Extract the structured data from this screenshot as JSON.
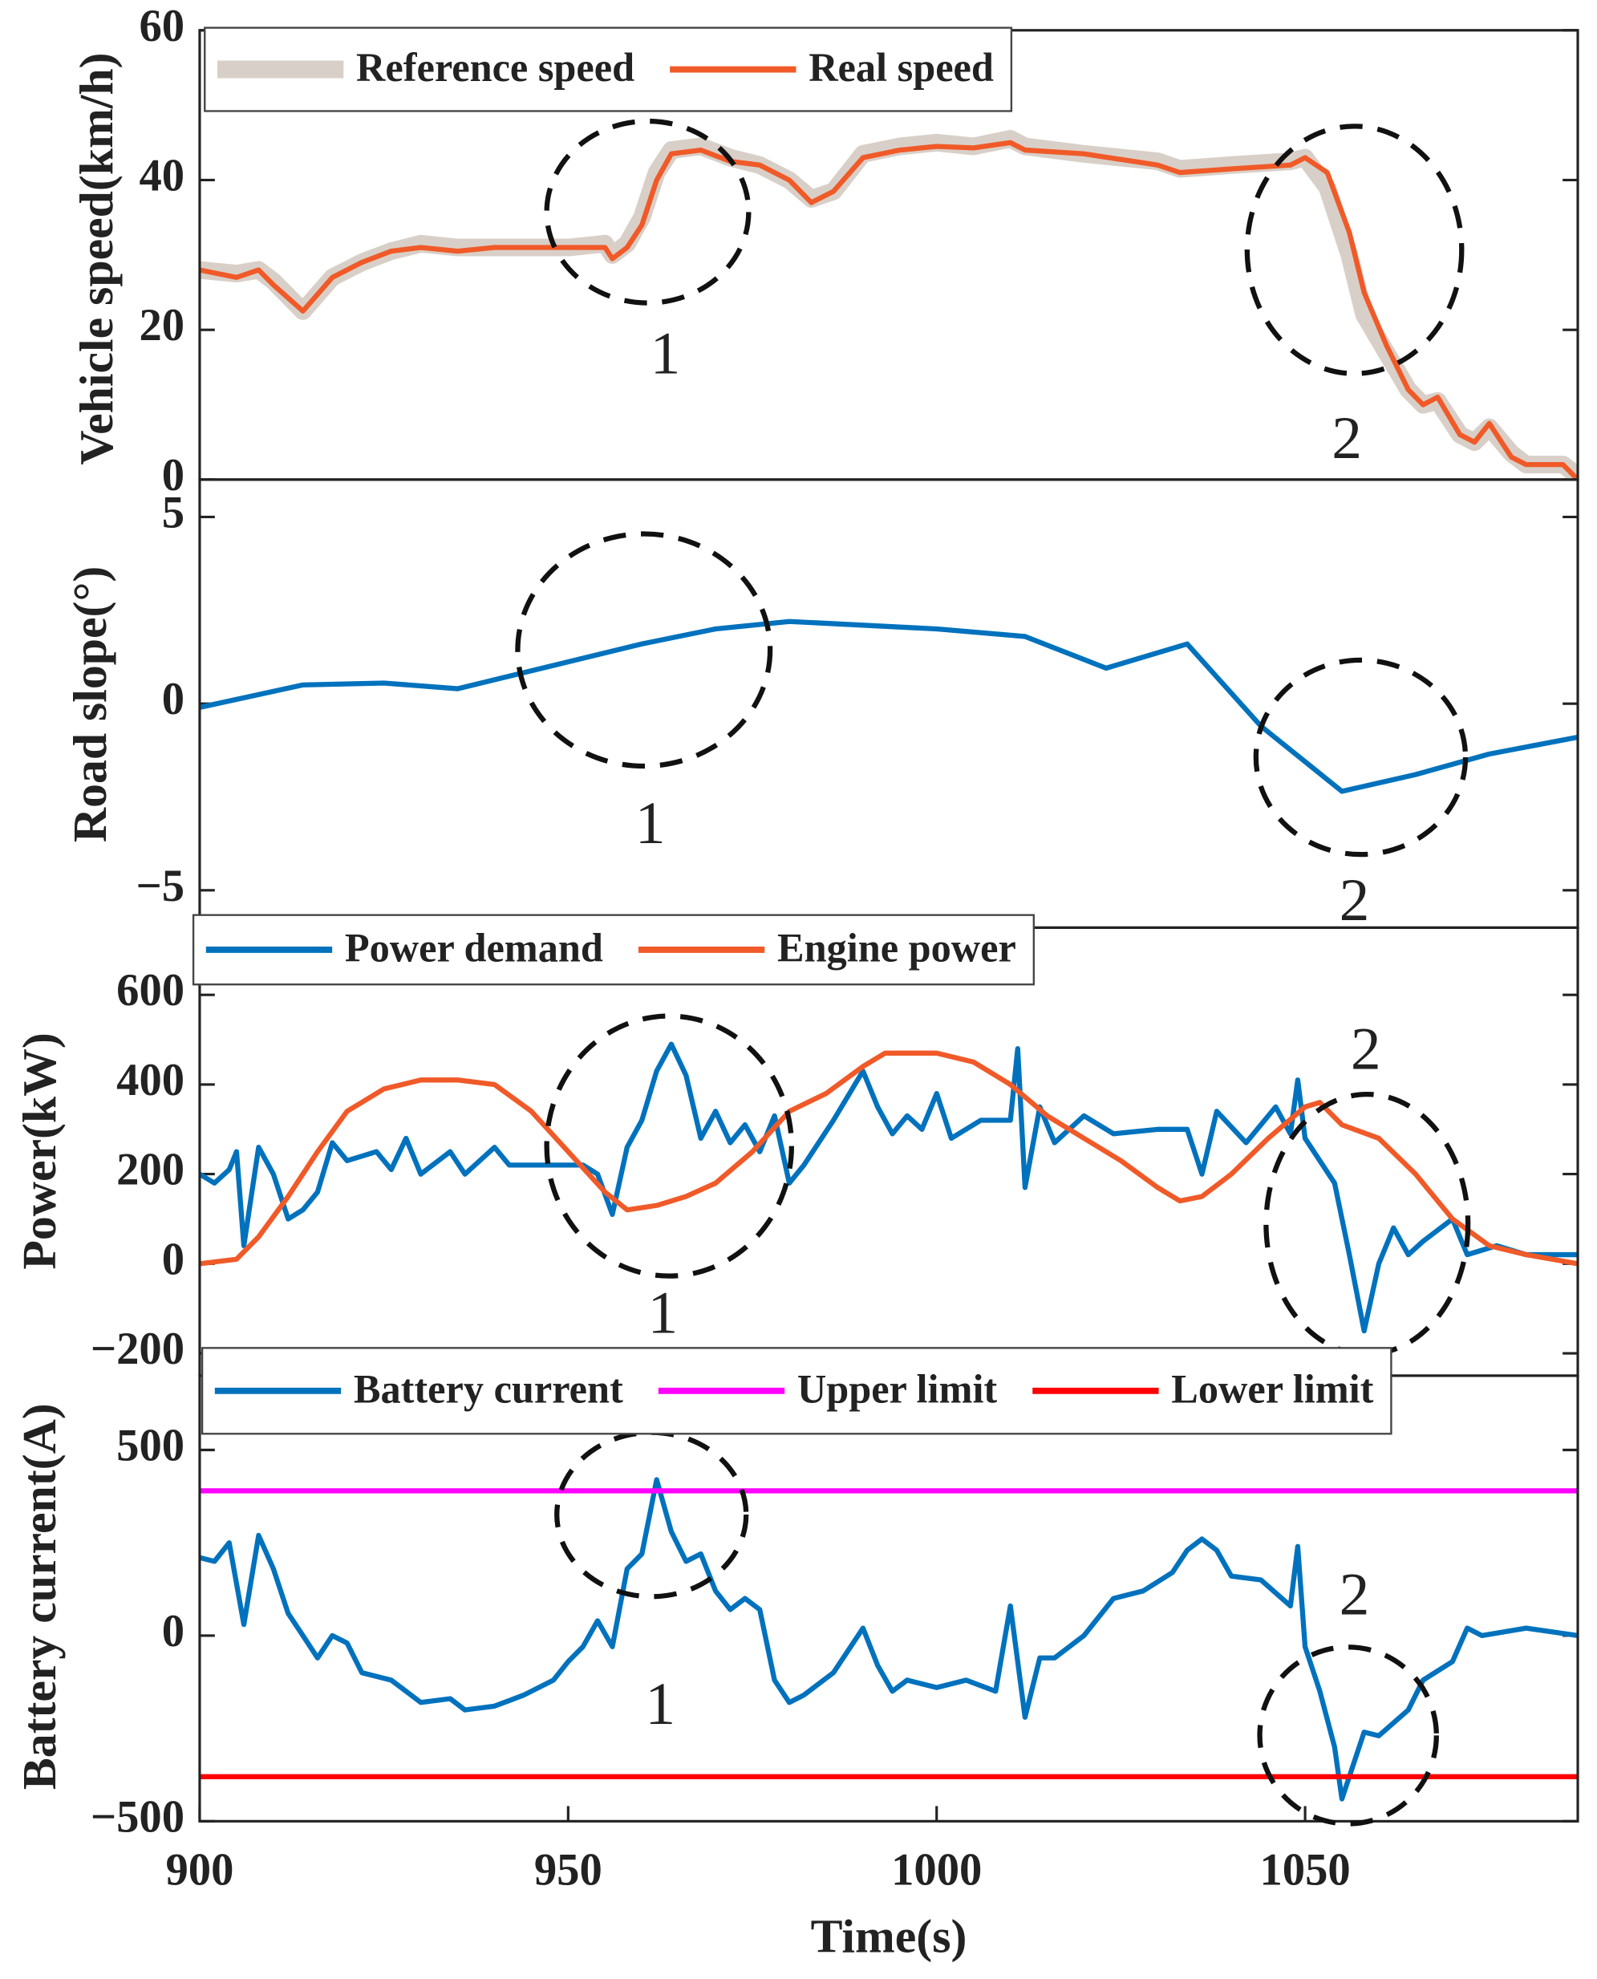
{
  "chart_data": [
    {
      "type": "line",
      "ylabel": "Vehicle speed(km/h)",
      "xlim": [
        900,
        1087
      ],
      "ylim": [
        0,
        60
      ],
      "yticks": [
        0,
        20,
        40,
        60
      ],
      "legend": "upper left",
      "x": [
        900,
        905,
        908,
        910,
        914,
        918,
        922,
        926,
        930,
        935,
        940,
        950,
        955,
        956,
        958,
        960,
        962,
        964,
        968,
        972,
        976,
        980,
        983,
        986,
        990,
        995,
        1000,
        1005,
        1010,
        1012,
        1020,
        1030,
        1033,
        1040,
        1048,
        1050,
        1053,
        1056,
        1058,
        1061,
        1064,
        1066,
        1068,
        1071,
        1073,
        1075,
        1078,
        1080,
        1085,
        1087
      ],
      "series": [
        {
          "name": "Reference speed",
          "color": "#d8d0c8",
          "values": [
            28,
            27.5,
            28,
            26.5,
            22.5,
            27,
            29,
            30.5,
            31.5,
            31,
            31,
            31,
            31.5,
            30,
            31.5,
            35,
            41,
            44,
            44.5,
            43,
            42,
            40,
            37.5,
            38.5,
            43.5,
            44.5,
            45,
            44.5,
            45.5,
            44.5,
            43.5,
            42.5,
            41.5,
            42,
            42.5,
            43,
            39,
            30,
            22,
            17,
            12,
            10,
            10.5,
            6,
            5,
            7,
            3.5,
            2,
            2,
            0.5
          ]
        },
        {
          "name": "Real speed",
          "color": "#f05a28",
          "values": [
            28,
            27,
            28,
            26,
            22.5,
            27,
            29,
            30.5,
            31,
            30.5,
            31,
            31,
            31,
            29.5,
            31,
            34,
            40,
            43.5,
            44,
            42.5,
            42,
            40,
            37,
            38.5,
            43,
            44,
            44.5,
            44.3,
            45,
            44,
            43.5,
            42,
            41,
            41.5,
            42,
            43,
            41,
            33,
            25,
            18,
            12,
            10,
            11,
            6,
            5,
            7.5,
            3,
            2,
            2,
            0
          ]
        }
      ],
      "annotations": [
        "1",
        "2"
      ]
    },
    {
      "type": "line",
      "ylabel": "Road slope(°)",
      "xlim": [
        900,
        1087
      ],
      "ylim": [
        -6,
        6
      ],
      "yticks": [
        {
          "value": -5,
          "label": "−5"
        },
        0,
        5
      ],
      "x": [
        900,
        914,
        925,
        935,
        960,
        970,
        980,
        1000,
        1012,
        1023,
        1034,
        1044,
        1055,
        1065,
        1075,
        1087
      ],
      "series": [
        {
          "name": "Road slope",
          "color": "#0072bd",
          "values": [
            -0.1,
            0.5,
            0.55,
            0.4,
            1.6,
            2.0,
            2.2,
            2.0,
            1.8,
            0.95,
            1.6,
            -0.6,
            -2.35,
            -1.9,
            -1.35,
            -0.9
          ]
        }
      ],
      "annotations": [
        "1",
        "2"
      ]
    },
    {
      "type": "line",
      "ylabel": "Power(kW)",
      "xlim": [
        900,
        1087
      ],
      "ylim": [
        -250,
        750
      ],
      "yticks": [
        {
          "value": -200,
          "label": "−200"
        },
        0,
        200,
        400,
        600
      ],
      "legend": "upper left",
      "series": [
        {
          "name": "Power demand",
          "color": "#0072bd",
          "x": [
            900,
            902,
            904,
            905,
            906,
            908,
            910,
            912,
            914,
            916,
            918,
            920,
            924,
            926,
            928,
            930,
            934,
            936,
            940,
            942,
            950,
            952,
            954,
            956,
            958,
            960,
            962,
            964,
            966,
            968,
            970,
            972,
            974,
            976,
            978,
            980,
            982,
            986,
            990,
            992,
            994,
            996,
            998,
            1000,
            1002,
            1006,
            1010,
            1011,
            1012,
            1014,
            1016,
            1020,
            1024,
            1030,
            1034,
            1036,
            1038,
            1042,
            1046,
            1048,
            1049,
            1050,
            1054,
            1056,
            1058,
            1060,
            1062,
            1064,
            1066,
            1070,
            1072,
            1076,
            1080,
            1087
          ],
          "values": [
            200,
            180,
            210,
            250,
            40,
            260,
            200,
            100,
            120,
            160,
            270,
            230,
            250,
            210,
            280,
            200,
            250,
            200,
            260,
            220,
            220,
            220,
            200,
            110,
            260,
            320,
            430,
            490,
            420,
            280,
            340,
            270,
            310,
            250,
            330,
            180,
            220,
            320,
            430,
            350,
            290,
            330,
            300,
            380,
            280,
            320,
            320,
            480,
            170,
            350,
            270,
            330,
            290,
            300,
            300,
            200,
            340,
            270,
            350,
            290,
            410,
            280,
            180,
            20,
            -150,
            0,
            80,
            20,
            50,
            100,
            20,
            40,
            20,
            20
          ]
        },
        {
          "name": "Engine power",
          "color": "#f05a28",
          "x": [
            900,
            905,
            908,
            912,
            916,
            920,
            925,
            930,
            935,
            940,
            945,
            950,
            955,
            958,
            962,
            966,
            970,
            975,
            980,
            985,
            990,
            993,
            1000,
            1005,
            1010,
            1015,
            1020,
            1025,
            1030,
            1033,
            1036,
            1040,
            1045,
            1050,
            1052,
            1055,
            1060,
            1065,
            1070,
            1075,
            1080,
            1087
          ],
          "values": [
            0,
            10,
            60,
            150,
            250,
            340,
            390,
            410,
            410,
            400,
            340,
            250,
            160,
            120,
            130,
            150,
            180,
            250,
            340,
            380,
            440,
            470,
            470,
            450,
            400,
            330,
            280,
            230,
            170,
            140,
            150,
            200,
            280,
            350,
            360,
            310,
            280,
            200,
            100,
            40,
            20,
            0
          ]
        }
      ],
      "annotations": [
        "1",
        "2"
      ]
    },
    {
      "type": "line",
      "ylabel": "Battery current(A)",
      "xlabel": "Time(s)",
      "xlim": [
        900,
        1087
      ],
      "ylim": [
        -500,
        700
      ],
      "yticks": [
        {
          "value": -500,
          "label": "−500"
        },
        0,
        500
      ],
      "xticks": [
        900,
        950,
        1000,
        1050
      ],
      "legend": "upper left",
      "series": [
        {
          "name": "Battery current",
          "color": "#0072bd",
          "x": [
            900,
            902,
            904,
            906,
            908,
            910,
            912,
            914,
            916,
            918,
            920,
            922,
            926,
            930,
            934,
            936,
            940,
            944,
            948,
            950,
            952,
            954,
            956,
            958,
            960,
            962,
            964,
            966,
            968,
            970,
            972,
            974,
            976,
            978,
            980,
            982,
            986,
            990,
            992,
            994,
            996,
            1000,
            1004,
            1008,
            1010,
            1012,
            1014,
            1016,
            1020,
            1024,
            1028,
            1032,
            1034,
            1036,
            1038,
            1040,
            1044,
            1048,
            1049,
            1050,
            1052,
            1054,
            1055,
            1058,
            1060,
            1064,
            1066,
            1070,
            1072,
            1074,
            1080,
            1087
          ],
          "values": [
            210,
            200,
            250,
            30,
            270,
            180,
            60,
            0,
            -60,
            0,
            -20,
            -100,
            -120,
            -180,
            -170,
            -200,
            -190,
            -160,
            -120,
            -70,
            -30,
            40,
            -30,
            180,
            220,
            420,
            280,
            200,
            220,
            120,
            70,
            100,
            70,
            -120,
            -180,
            -160,
            -100,
            20,
            -80,
            -150,
            -120,
            -140,
            -120,
            -150,
            80,
            -220,
            -60,
            -60,
            0,
            100,
            120,
            170,
            230,
            260,
            230,
            160,
            150,
            80,
            240,
            -30,
            -150,
            -300,
            -440,
            -260,
            -270,
            -200,
            -120,
            -70,
            20,
            0,
            20,
            0
          ]
        },
        {
          "name": "Upper limit",
          "color": "#ff00ff",
          "x": [
            900,
            1087
          ],
          "values": [
            390,
            390
          ]
        },
        {
          "name": "Lower limit",
          "color": "#ff0000",
          "x": [
            900,
            1087
          ],
          "values": [
            -380,
            -380
          ]
        }
      ],
      "annotations": [
        "1",
        "2"
      ]
    }
  ]
}
